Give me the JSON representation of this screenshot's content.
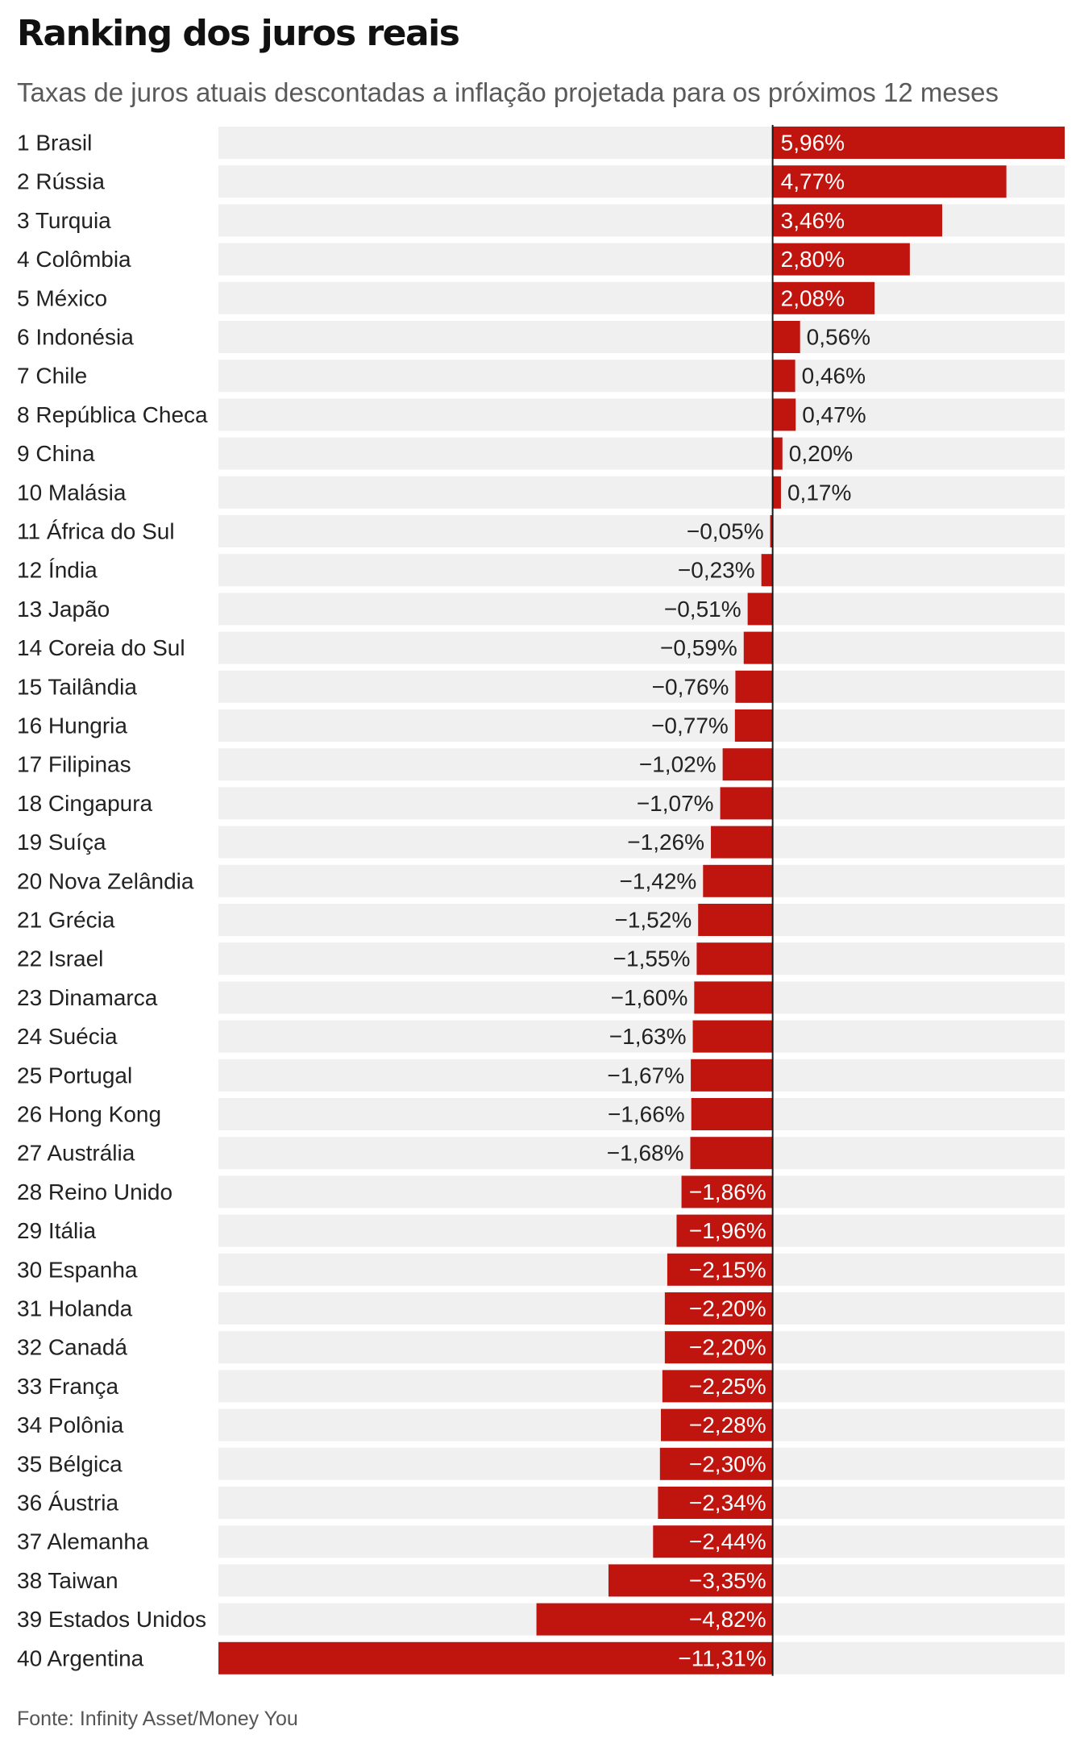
{
  "header": {
    "title": "Ranking dos juros reais",
    "subtitle": "Taxas de juros atuais descontadas a inflação projetada para os próximos 12 meses"
  },
  "footer": {
    "source": "Fonte: Infinity Asset/Money You"
  },
  "colors": {
    "bar": "#c0140f",
    "row_background": "#f0f0f0",
    "label_text": "#222222",
    "label_inside": "#ffffff"
  },
  "chart_data": {
    "type": "bar",
    "orientation": "horizontal",
    "title": "Ranking dos juros reais",
    "subtitle": "Taxas de juros atuais descontadas a inflação projetada para os próximos 12 meses",
    "xlabel": "",
    "ylabel": "",
    "xlim": [
      -11.31,
      5.96
    ],
    "grid": false,
    "legend": "none",
    "categories": [
      "1 Brasil",
      "2 Rússia",
      "3 Turquia",
      "4 Colômbia",
      "5 México",
      "6 Indonésia",
      "7 Chile",
      "8 República Checa",
      "9 China",
      "10 Malásia",
      "11 África do Sul",
      "12 Índia",
      "13 Japão",
      "14 Coreia do Sul",
      "15 Tailândia",
      "16 Hungria",
      "17 Filipinas",
      "18 Cingapura",
      "19 Suíça",
      "20 Nova Zelândia",
      "21 Grécia",
      "22 Israel",
      "23 Dinamarca",
      "24 Suécia",
      "25 Portugal",
      "26 Hong Kong",
      "27 Austrália",
      "28 Reino Unido",
      "29 Itália",
      "30 Espanha",
      "31 Holanda",
      "32 Canadá",
      "33 França",
      "34 Polônia",
      "35 Bélgica",
      "36 Áustria",
      "37 Alemanha",
      "38 Taiwan",
      "39 Estados Unidos",
      "40 Argentina"
    ],
    "values": [
      5.96,
      4.77,
      3.46,
      2.8,
      2.08,
      0.56,
      0.46,
      0.47,
      0.2,
      0.17,
      -0.05,
      -0.23,
      -0.51,
      -0.59,
      -0.76,
      -0.77,
      -1.02,
      -1.07,
      -1.26,
      -1.42,
      -1.52,
      -1.55,
      -1.6,
      -1.63,
      -1.67,
      -1.66,
      -1.68,
      -1.86,
      -1.96,
      -2.15,
      -2.2,
      -2.2,
      -2.25,
      -2.28,
      -2.3,
      -2.34,
      -2.44,
      -3.35,
      -4.82,
      -11.31
    ],
    "data_labels": [
      "5,96%",
      "4,77%",
      "3,46%",
      "2,80%",
      "2,08%",
      "0,56%",
      "0,46%",
      "0,47%",
      "0,20%",
      "0,17%",
      "−0,05%",
      "−0,23%",
      "−0,51%",
      "−0,59%",
      "−0,76%",
      "−0,77%",
      "−1,02%",
      "−1,07%",
      "−1,26%",
      "−1,42%",
      "−1,52%",
      "−1,55%",
      "−1,60%",
      "−1,63%",
      "−1,67%",
      "−1,66%",
      "−1,68%",
      "−1,86%",
      "−1,96%",
      "−2,15%",
      "−2,20%",
      "−2,20%",
      "−2,25%",
      "−2,28%",
      "−2,30%",
      "−2,34%",
      "−2,44%",
      "−3,35%",
      "−4,82%",
      "−11,31%"
    ]
  }
}
